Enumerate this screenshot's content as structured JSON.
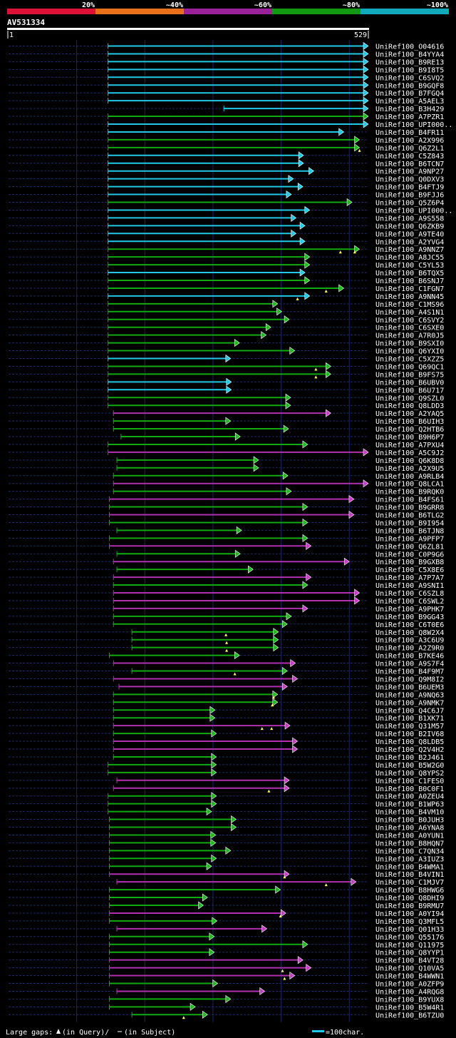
{
  "query_id": "AV531334",
  "ruler": {
    "start_label": "1",
    "end_label": "529"
  },
  "footer": {
    "gaps_prefix": "Large gaps: ",
    "gaps_query_text": "(in Query)/",
    "gaps_subject_text": "(in Subject)",
    "scale_label": "=100char."
  },
  "colors": {
    "id20": "#dd1133",
    "id40": "#e8701a",
    "id60": "#992299",
    "id80": "#119911",
    "id100": "#11aabb"
  },
  "chart_data": {
    "type": "alignment-overview",
    "query_length": 529,
    "identity_legend": [
      "20%",
      "~40%",
      "~60%",
      "~80%",
      "~100%"
    ],
    "rows": [
      {
        "name": "UniRef100_O04616",
        "s": 147,
        "e": 529,
        "c": "cyan",
        "q": []
      },
      {
        "name": "UniRef100_B4YYA4",
        "s": 147,
        "e": 529,
        "c": "cyan",
        "q": []
      },
      {
        "name": "UniRef100_B9RE13",
        "s": 147,
        "e": 529,
        "c": "cyan",
        "q": []
      },
      {
        "name": "UniRef100_B9I8T5",
        "s": 147,
        "e": 529,
        "c": "cyan",
        "q": []
      },
      {
        "name": "UniRef100_C6SVQ2",
        "s": 147,
        "e": 529,
        "c": "cyan",
        "q": []
      },
      {
        "name": "UniRef100_B9GQF8",
        "s": 147,
        "e": 529,
        "c": "cyan",
        "q": []
      },
      {
        "name": "UniRef100_B7FGQ4",
        "s": 147,
        "e": 529,
        "c": "cyan",
        "q": []
      },
      {
        "name": "UniRef100_A5AEL3",
        "s": 147,
        "e": 529,
        "c": "cyan",
        "q": []
      },
      {
        "name": "UniRef100_B3H429",
        "s": 317,
        "e": 529,
        "c": "cyan",
        "q": []
      },
      {
        "name": "UniRef100_A7PZR1",
        "s": 147,
        "e": 529,
        "c": "green",
        "q": []
      },
      {
        "name": "UniRef100_UPI000..",
        "s": 147,
        "e": 529,
        "c": "cyan",
        "q": []
      },
      {
        "name": "UniRef100_B4FR11",
        "s": 147,
        "e": 493,
        "c": "cyan",
        "q": []
      },
      {
        "name": "UniRef100_A2X996",
        "s": 147,
        "e": 516,
        "c": "green",
        "q": []
      },
      {
        "name": "UniRef100_Q6Z2L1",
        "s": 147,
        "e": 516,
        "c": "green",
        "q": [
          516
        ]
      },
      {
        "name": "UniRef100_C5Z843",
        "s": 147,
        "e": 434,
        "c": "cyan",
        "q": []
      },
      {
        "name": "UniRef100_B6TCN7",
        "s": 147,
        "e": 434,
        "c": "cyan",
        "q": []
      },
      {
        "name": "UniRef100_A9NP27",
        "s": 147,
        "e": 449,
        "c": "cyan",
        "q": []
      },
      {
        "name": "UniRef100_Q0DXV3",
        "s": 147,
        "e": 419,
        "c": "cyan",
        "q": []
      },
      {
        "name": "UniRef100_B4FTJ9",
        "s": 147,
        "e": 433,
        "c": "cyan",
        "q": []
      },
      {
        "name": "UniRef100_B9FJJ6",
        "s": 147,
        "e": 416,
        "c": "cyan",
        "q": []
      },
      {
        "name": "UniRef100_Q5Z6P4",
        "s": 147,
        "e": 505,
        "c": "green",
        "q": []
      },
      {
        "name": "UniRef100_UPI000..",
        "s": 147,
        "e": 443,
        "c": "cyan",
        "q": []
      },
      {
        "name": "UniRef100_A9S558",
        "s": 147,
        "e": 423,
        "c": "cyan",
        "q": []
      },
      {
        "name": "UniRef100_Q6ZKB9",
        "s": 147,
        "e": 436,
        "c": "cyan",
        "q": []
      },
      {
        "name": "UniRef100_A9TE40",
        "s": 147,
        "e": 423,
        "c": "cyan",
        "q": []
      },
      {
        "name": "UniRef100_A2YVG4",
        "s": 147,
        "e": 436,
        "c": "cyan",
        "q": []
      },
      {
        "name": "UniRef100_A9NNZ7",
        "s": 147,
        "e": 516,
        "c": "green",
        "q": [
          488,
          509
        ]
      },
      {
        "name": "UniRef100_A8JC55",
        "s": 147,
        "e": 443,
        "c": "green",
        "q": []
      },
      {
        "name": "UniRef100_C5YL53",
        "s": 147,
        "e": 443,
        "c": "green",
        "q": []
      },
      {
        "name": "UniRef100_B6TQX5",
        "s": 147,
        "e": 436,
        "c": "cyan",
        "q": []
      },
      {
        "name": "UniRef100_B6SNJ7",
        "s": 147,
        "e": 443,
        "c": "green",
        "q": []
      },
      {
        "name": "UniRef100_C1FGN7",
        "s": 147,
        "e": 493,
        "c": "green",
        "q": [
          467
        ]
      },
      {
        "name": "UniRef100_A9NN45",
        "s": 147,
        "e": 443,
        "c": "cyan",
        "q": [
          425
        ]
      },
      {
        "name": "UniRef100_C1MS96",
        "s": 147,
        "e": 396,
        "c": "green",
        "q": []
      },
      {
        "name": "UniRef100_A4S1N1",
        "s": 147,
        "e": 402,
        "c": "green",
        "q": []
      },
      {
        "name": "UniRef100_C6SVY2",
        "s": 147,
        "e": 413,
        "c": "green",
        "q": []
      },
      {
        "name": "UniRef100_C6SXE0",
        "s": 147,
        "e": 386,
        "c": "green",
        "q": []
      },
      {
        "name": "UniRef100_A7R0J5",
        "s": 147,
        "e": 379,
        "c": "green",
        "q": []
      },
      {
        "name": "UniRef100_B9SXI0",
        "s": 147,
        "e": 340,
        "c": "green",
        "q": []
      },
      {
        "name": "UniRef100_Q6YXI0",
        "s": 147,
        "e": 421,
        "c": "green",
        "q": []
      },
      {
        "name": "UniRef100_C5XZZ5",
        "s": 147,
        "e": 327,
        "c": "cyan",
        "q": []
      },
      {
        "name": "UniRef100_Q69QC1",
        "s": 147,
        "e": 474,
        "c": "green",
        "q": [
          452
        ]
      },
      {
        "name": "UniRef100_B9FS75",
        "s": 147,
        "e": 474,
        "c": "green",
        "q": [
          452
        ]
      },
      {
        "name": "UniRef100_B6UBV0",
        "s": 147,
        "e": 328,
        "c": "cyan",
        "q": []
      },
      {
        "name": "UniRef100_B6U717",
        "s": 147,
        "e": 328,
        "c": "cyan",
        "q": []
      },
      {
        "name": "UniRef100_Q9SZL0",
        "s": 147,
        "e": 415,
        "c": "green",
        "q": []
      },
      {
        "name": "UniRef100_Q8LDD3",
        "s": 147,
        "e": 415,
        "c": "green",
        "q": []
      },
      {
        "name": "UniRef100_A2YAQ5",
        "s": 155,
        "e": 474,
        "c": "magenta",
        "q": []
      },
      {
        "name": "UniRef100_B6UIH3",
        "s": 155,
        "e": 327,
        "c": "green",
        "q": []
      },
      {
        "name": "UniRef100_Q2HTB6",
        "s": 155,
        "e": 412,
        "c": "green",
        "q": []
      },
      {
        "name": "UniRef100_B9H6P7",
        "s": 166,
        "e": 341,
        "c": "green",
        "q": []
      },
      {
        "name": "UniRef100_A7PXU4",
        "s": 147,
        "e": 440,
        "c": "green",
        "q": []
      },
      {
        "name": "UniRef100_A5C9J2",
        "s": 147,
        "e": 529,
        "c": "magenta",
        "q": []
      },
      {
        "name": "UniRef100_Q6K8D8",
        "s": 160,
        "e": 368,
        "c": "green",
        "q": []
      },
      {
        "name": "UniRef100_A2X9U5",
        "s": 160,
        "e": 368,
        "c": "green",
        "q": []
      },
      {
        "name": "UniRef100_A9RLB4",
        "s": 155,
        "e": 411,
        "c": "green",
        "q": []
      },
      {
        "name": "UniRef100_Q8LCA1",
        "s": 155,
        "e": 529,
        "c": "magenta",
        "q": []
      },
      {
        "name": "UniRef100_B9RQK0",
        "s": 155,
        "e": 416,
        "c": "green",
        "q": []
      },
      {
        "name": "UniRef100_B4FS61",
        "s": 149,
        "e": 508,
        "c": "magenta",
        "q": []
      },
      {
        "name": "UniRef100_B9GRR8",
        "s": 149,
        "e": 440,
        "c": "green",
        "q": []
      },
      {
        "name": "UniRef100_B6TLG2",
        "s": 149,
        "e": 508,
        "c": "magenta",
        "q": []
      },
      {
        "name": "UniRef100_B9I954",
        "s": 149,
        "e": 440,
        "c": "green",
        "q": []
      },
      {
        "name": "UniRef100_B6TJN8",
        "s": 160,
        "e": 343,
        "c": "green",
        "q": []
      },
      {
        "name": "UniRef100_A9PFP7",
        "s": 149,
        "e": 440,
        "c": "green",
        "q": []
      },
      {
        "name": "UniRef100_Q6ZL81",
        "s": 149,
        "e": 445,
        "c": "magenta",
        "q": []
      },
      {
        "name": "UniRef100_C0P9G6",
        "s": 160,
        "e": 341,
        "c": "green",
        "q": []
      },
      {
        "name": "UniRef100_B9GXB8",
        "s": 155,
        "e": 501,
        "c": "magenta",
        "q": []
      },
      {
        "name": "UniRef100_C5X8E6",
        "s": 160,
        "e": 360,
        "c": "green",
        "q": []
      },
      {
        "name": "UniRef100_A7P7A7",
        "s": 155,
        "e": 445,
        "c": "magenta",
        "q": []
      },
      {
        "name": "UniRef100_A9SNI1",
        "s": 155,
        "e": 440,
        "c": "green",
        "q": []
      },
      {
        "name": "UniRef100_C6SZL8",
        "s": 155,
        "e": 516,
        "c": "magenta",
        "q": []
      },
      {
        "name": "UniRef100_C6SWL2",
        "s": 155,
        "e": 516,
        "c": "magenta",
        "q": []
      },
      {
        "name": "UniRef100_A9PHK7",
        "s": 155,
        "e": 440,
        "c": "magenta",
        "q": []
      },
      {
        "name": "UniRef100_B9GG43",
        "s": 155,
        "e": 416,
        "c": "green",
        "q": []
      },
      {
        "name": "UniRef100_C6T0E6",
        "s": 155,
        "e": 410,
        "c": "green",
        "q": []
      },
      {
        "name": "UniRef100_Q8W2X4",
        "s": 182,
        "e": 397,
        "c": "green",
        "q": [
          320
        ]
      },
      {
        "name": "UniRef100_A3C6U9",
        "s": 182,
        "e": 397,
        "c": "green",
        "q": [
          321
        ]
      },
      {
        "name": "UniRef100_A2Z9R0",
        "s": 182,
        "e": 397,
        "c": "green",
        "q": [
          321
        ]
      },
      {
        "name": "UniRef100_B7KE46",
        "s": 149,
        "e": 340,
        "c": "green",
        "q": []
      },
      {
        "name": "UniRef100_A9S7F4",
        "s": 155,
        "e": 422,
        "c": "magenta",
        "q": []
      },
      {
        "name": "UniRef100_B4F9M7",
        "s": 182,
        "e": 410,
        "c": "green",
        "q": [
          333
        ]
      },
      {
        "name": "UniRef100_Q9M8I2",
        "s": 155,
        "e": 425,
        "c": "magenta",
        "q": []
      },
      {
        "name": "UniRef100_B6UEM3",
        "s": 163,
        "e": 410,
        "c": "magenta",
        "q": []
      },
      {
        "name": "UniRef100_A9NQ63",
        "s": 155,
        "e": 396,
        "c": "green",
        "q": [
          390
        ]
      },
      {
        "name": "UniRef100_A9NMK7",
        "s": 155,
        "e": 396,
        "c": "green",
        "q": [
          388
        ]
      },
      {
        "name": "UniRef100_Q4C6J7",
        "s": 155,
        "e": 304,
        "c": "green",
        "q": []
      },
      {
        "name": "UniRef100_B1XK71",
        "s": 155,
        "e": 304,
        "c": "green",
        "q": []
      },
      {
        "name": "UniRef100_Q31M57",
        "s": 155,
        "e": 414,
        "c": "magenta",
        "q": [
          373,
          387
        ]
      },
      {
        "name": "UniRef100_B2IV68",
        "s": 155,
        "e": 306,
        "c": "green",
        "q": []
      },
      {
        "name": "UniRef100_Q8LDB5",
        "s": 155,
        "e": 425,
        "c": "magenta",
        "q": []
      },
      {
        "name": "UniRef100_Q2V4H2",
        "s": 155,
        "e": 425,
        "c": "magenta",
        "q": []
      },
      {
        "name": "UniRef100_B2J461",
        "s": 155,
        "e": 306,
        "c": "green",
        "q": []
      },
      {
        "name": "UniRef100_B5W2G0",
        "s": 147,
        "e": 306,
        "c": "green",
        "q": []
      },
      {
        "name": "UniRef100_Q8YPS2",
        "s": 147,
        "e": 306,
        "c": "green",
        "q": []
      },
      {
        "name": "UniRef100_C1FES0",
        "s": 160,
        "e": 413,
        "c": "magenta",
        "q": []
      },
      {
        "name": "UniRef100_B0C0F1",
        "s": 155,
        "e": 413,
        "c": "magenta",
        "q": [
          383
        ]
      },
      {
        "name": "UniRef100_A0ZEU4",
        "s": 147,
        "e": 306,
        "c": "green",
        "q": []
      },
      {
        "name": "UniRef100_B1WP63",
        "s": 147,
        "e": 306,
        "c": "green",
        "q": []
      },
      {
        "name": "UniRef100_B4VM10",
        "s": 147,
        "e": 299,
        "c": "green",
        "q": []
      },
      {
        "name": "UniRef100_B0JUH3",
        "s": 149,
        "e": 335,
        "c": "green",
        "q": []
      },
      {
        "name": "UniRef100_A6YNA8",
        "s": 149,
        "e": 335,
        "c": "green",
        "q": []
      },
      {
        "name": "UniRef100_A0YUN1",
        "s": 149,
        "e": 305,
        "c": "green",
        "q": []
      },
      {
        "name": "UniRef100_B8HQN7",
        "s": 149,
        "e": 305,
        "c": "green",
        "q": []
      },
      {
        "name": "UniRef100_C7QN34",
        "s": 149,
        "e": 327,
        "c": "green",
        "q": []
      },
      {
        "name": "UniRef100_A3IUZ3",
        "s": 149,
        "e": 306,
        "c": "green",
        "q": []
      },
      {
        "name": "UniRef100_B4WMA1",
        "s": 149,
        "e": 299,
        "c": "green",
        "q": []
      },
      {
        "name": "UniRef100_B4VIN1",
        "s": 149,
        "e": 413,
        "c": "magenta",
        "q": [
          406
        ]
      },
      {
        "name": "UniRef100_C1MJV7",
        "s": 160,
        "e": 511,
        "c": "magenta",
        "q": [
          467
        ]
      },
      {
        "name": "UniRef100_B8HWG6",
        "s": 149,
        "e": 400,
        "c": "green",
        "q": []
      },
      {
        "name": "UniRef100_Q8DHI9",
        "s": 149,
        "e": 293,
        "c": "green",
        "q": []
      },
      {
        "name": "UniRef100_B9RMU7",
        "s": 149,
        "e": 287,
        "c": "green",
        "q": []
      },
      {
        "name": "UniRef100_A0YI94",
        "s": 149,
        "e": 408,
        "c": "magenta",
        "q": [
          400
        ]
      },
      {
        "name": "UniRef100_Q3MFL5",
        "s": 149,
        "e": 307,
        "c": "green",
        "q": []
      },
      {
        "name": "UniRef100_Q01H33",
        "s": 160,
        "e": 380,
        "c": "magenta",
        "q": []
      },
      {
        "name": "UniRef100_Q55176",
        "s": 149,
        "e": 303,
        "c": "green",
        "q": []
      },
      {
        "name": "UniRef100_Q11975",
        "s": 149,
        "e": 440,
        "c": "green",
        "q": []
      },
      {
        "name": "UniRef100_Q8YYP1",
        "s": 149,
        "e": 303,
        "c": "green",
        "q": []
      },
      {
        "name": "UniRef100_B4VT28",
        "s": 149,
        "e": 433,
        "c": "magenta",
        "q": []
      },
      {
        "name": "UniRef100_Q10VA5",
        "s": 149,
        "e": 445,
        "c": "magenta",
        "q": [
          403
        ]
      },
      {
        "name": "UniRef100_B4WWN1",
        "s": 149,
        "e": 421,
        "c": "magenta",
        "q": [
          406
        ]
      },
      {
        "name": "UniRef100_A0ZFP9",
        "s": 149,
        "e": 308,
        "c": "green",
        "q": []
      },
      {
        "name": "UniRef100_A4RQG8",
        "s": 160,
        "e": 377,
        "c": "magenta",
        "q": []
      },
      {
        "name": "UniRef100_B9YUX8",
        "s": 149,
        "e": 327,
        "c": "green",
        "q": []
      },
      {
        "name": "UniRef100_B5W4R1",
        "s": 149,
        "e": 275,
        "c": "green",
        "q": []
      },
      {
        "name": "UniRef100_B6TZU0",
        "s": 182,
        "e": 293,
        "c": "green",
        "q": [
          258
        ]
      }
    ]
  }
}
